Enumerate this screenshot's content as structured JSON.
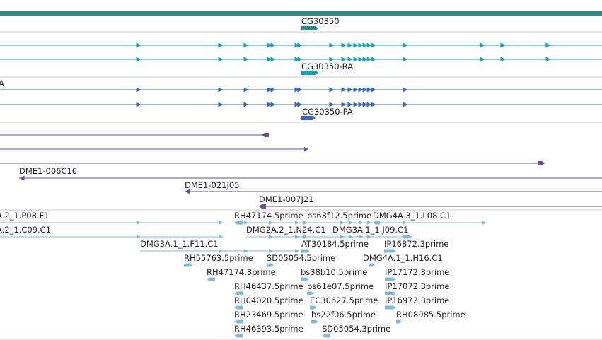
{
  "palette": {
    "gene": "#2d8a88",
    "transcript": "#11a1b7",
    "protein": "#3569b8",
    "clone": "#6a4a9c",
    "est": "#7fb9d6",
    "divider": "#cccccc"
  },
  "genes": [
    {
      "name": "CG30350"
    }
  ],
  "transcripts": [
    {
      "label": "CG30350-RA"
    }
  ],
  "proteins": [
    {
      "label": "A"
    },
    {
      "label": "CG30350-PA"
    }
  ],
  "clones": [
    {
      "label": "DME1-006C16"
    },
    {
      "label": "DME1-021J05"
    },
    {
      "label": "DME1-007J21"
    }
  ],
  "est_labels": [
    "A.2_1.P08.F1",
    "A.2_1.C09.C1",
    "RH47174.5prime",
    "bs63f12.5prime",
    "DMG4A.3_1.L08.C1",
    "DMG2A.2_1.N24.C1",
    "DMG3A.1_1.J09.C1",
    "DMG3A.1_1.F11.C1",
    "AT30184.5prime",
    "IP16872.3prime",
    "RH55763.5prime",
    "SD05054.5prime",
    "DMG4A.1_1.H16.C1",
    "RH47174.3prime",
    "bs38b10.5prime",
    "IP17172.3prime",
    "RH46437.5prime",
    "bs61e07.5prime",
    "IP17072.3prime",
    "RH04020.5prime",
    "EC30627.5prime",
    "IP16972.3prime",
    "RH23469.5prime",
    "bs22f06.5prime",
    "RH08985.5prime",
    "RH46393.5prime",
    "SD05054.3prime"
  ]
}
